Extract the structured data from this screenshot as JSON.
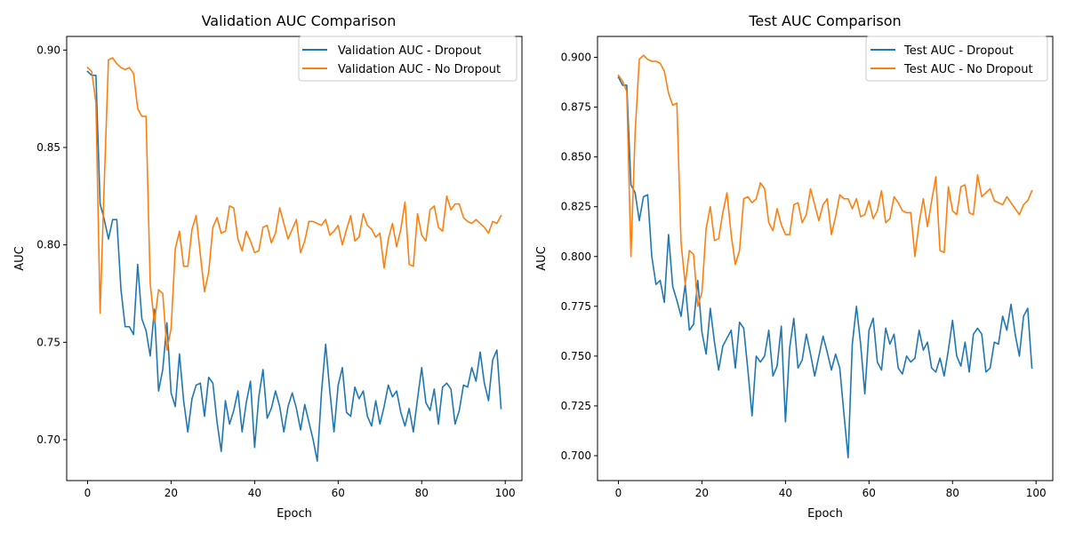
{
  "chart_data": [
    {
      "type": "line",
      "title": "Validation AUC Comparison",
      "xlabel": "Epoch",
      "ylabel": "AUC",
      "xlim": [
        -5,
        104
      ],
      "ylim": [
        0.679,
        0.907
      ],
      "xticks": [
        0,
        20,
        40,
        60,
        80,
        100
      ],
      "xtick_labels": [
        "0",
        "20",
        "40",
        "60",
        "80",
        "100"
      ],
      "yticks": [
        0.7,
        0.75,
        0.8,
        0.85,
        0.9
      ],
      "ytick_labels": [
        "0.70",
        "0.75",
        "0.80",
        "0.85",
        "0.90"
      ],
      "grid": false,
      "legend": "top-right",
      "series": [
        {
          "name": "Validation AUC - Dropout",
          "color": "#1f77b4",
          "x": [
            0,
            1,
            2,
            3,
            4,
            5,
            6,
            7,
            8,
            9,
            10,
            11,
            12,
            13,
            14,
            15,
            16,
            17,
            18,
            19,
            20,
            21,
            22,
            23,
            24,
            25,
            26,
            27,
            28,
            29,
            30,
            31,
            32,
            33,
            34,
            35,
            36,
            37,
            38,
            39,
            40,
            41,
            42,
            43,
            44,
            45,
            46,
            47,
            48,
            49,
            50,
            51,
            52,
            53,
            54,
            55,
            56,
            57,
            58,
            59,
            60,
            61,
            62,
            63,
            64,
            65,
            66,
            67,
            68,
            69,
            70,
            71,
            72,
            73,
            74,
            75,
            76,
            77,
            78,
            79,
            80,
            81,
            82,
            83,
            84,
            85,
            86,
            87,
            88,
            89,
            90,
            91,
            92,
            93,
            94,
            95,
            96,
            97,
            98,
            99
          ],
          "values": [
            0.889,
            0.887,
            0.887,
            0.821,
            0.813,
            0.803,
            0.813,
            0.813,
            0.777,
            0.758,
            0.758,
            0.754,
            0.79,
            0.762,
            0.756,
            0.743,
            0.767,
            0.725,
            0.736,
            0.76,
            0.724,
            0.717,
            0.744,
            0.72,
            0.704,
            0.721,
            0.728,
            0.729,
            0.712,
            0.732,
            0.729,
            0.709,
            0.694,
            0.72,
            0.708,
            0.715,
            0.725,
            0.704,
            0.719,
            0.73,
            0.696,
            0.722,
            0.736,
            0.711,
            0.716,
            0.725,
            0.717,
            0.704,
            0.717,
            0.724,
            0.716,
            0.705,
            0.718,
            0.709,
            0.7,
            0.689,
            0.724,
            0.749,
            0.725,
            0.704,
            0.728,
            0.737,
            0.714,
            0.712,
            0.727,
            0.721,
            0.725,
            0.712,
            0.707,
            0.72,
            0.708,
            0.717,
            0.728,
            0.722,
            0.725,
            0.714,
            0.707,
            0.716,
            0.704,
            0.721,
            0.737,
            0.719,
            0.715,
            0.726,
            0.708,
            0.727,
            0.729,
            0.726,
            0.708,
            0.715,
            0.728,
            0.727,
            0.737,
            0.73,
            0.745,
            0.729,
            0.72,
            0.741,
            0.746,
            0.716
          ]
        },
        {
          "name": "Validation AUC - No Dropout",
          "color": "#ff7f0e",
          "x": [
            0,
            1,
            2,
            3,
            4,
            5,
            6,
            7,
            8,
            9,
            10,
            11,
            12,
            13,
            14,
            15,
            16,
            17,
            18,
            19,
            20,
            21,
            22,
            23,
            24,
            25,
            26,
            27,
            28,
            29,
            30,
            31,
            32,
            33,
            34,
            35,
            36,
            37,
            38,
            39,
            40,
            41,
            42,
            43,
            44,
            45,
            46,
            47,
            48,
            49,
            50,
            51,
            52,
            53,
            54,
            55,
            56,
            57,
            58,
            59,
            60,
            61,
            62,
            63,
            64,
            65,
            66,
            67,
            68,
            69,
            70,
            71,
            72,
            73,
            74,
            75,
            76,
            77,
            78,
            79,
            80,
            81,
            82,
            83,
            84,
            85,
            86,
            87,
            88,
            89,
            90,
            91,
            92,
            93,
            94,
            95,
            96,
            97,
            98,
            99
          ],
          "values": [
            0.891,
            0.889,
            0.873,
            0.765,
            0.832,
            0.895,
            0.896,
            0.893,
            0.891,
            0.89,
            0.891,
            0.888,
            0.87,
            0.866,
            0.866,
            0.78,
            0.76,
            0.777,
            0.775,
            0.746,
            0.757,
            0.798,
            0.807,
            0.789,
            0.789,
            0.808,
            0.815,
            0.795,
            0.776,
            0.786,
            0.809,
            0.814,
            0.806,
            0.807,
            0.82,
            0.819,
            0.803,
            0.797,
            0.807,
            0.802,
            0.796,
            0.797,
            0.809,
            0.81,
            0.801,
            0.806,
            0.819,
            0.811,
            0.803,
            0.808,
            0.813,
            0.796,
            0.802,
            0.812,
            0.812,
            0.811,
            0.81,
            0.813,
            0.805,
            0.807,
            0.81,
            0.8,
            0.808,
            0.815,
            0.802,
            0.804,
            0.816,
            0.81,
            0.808,
            0.804,
            0.806,
            0.788,
            0.803,
            0.811,
            0.799,
            0.808,
            0.822,
            0.79,
            0.789,
            0.816,
            0.805,
            0.802,
            0.818,
            0.82,
            0.809,
            0.807,
            0.825,
            0.818,
            0.821,
            0.821,
            0.814,
            0.812,
            0.811,
            0.813,
            0.811,
            0.809,
            0.806,
            0.812,
            0.811,
            0.815
          ]
        }
      ]
    },
    {
      "type": "line",
      "title": "Test AUC Comparison",
      "xlabel": "Epoch",
      "ylabel": "AUC",
      "xlim": [
        -5,
        104
      ],
      "ylim": [
        0.6875,
        0.9105
      ],
      "xticks": [
        0,
        20,
        40,
        60,
        80,
        100
      ],
      "xtick_labels": [
        "0",
        "20",
        "40",
        "60",
        "80",
        "100"
      ],
      "yticks": [
        0.7,
        0.725,
        0.75,
        0.775,
        0.8,
        0.825,
        0.85,
        0.875,
        0.9
      ],
      "ytick_labels": [
        "0.700",
        "0.725",
        "0.750",
        "0.775",
        "0.800",
        "0.825",
        "0.850",
        "0.875",
        "0.900"
      ],
      "grid": false,
      "legend": "top-right",
      "series": [
        {
          "name": "Test AUC - Dropout",
          "color": "#1f77b4",
          "x": [
            0,
            1,
            2,
            3,
            4,
            5,
            6,
            7,
            8,
            9,
            10,
            11,
            12,
            13,
            14,
            15,
            16,
            17,
            18,
            19,
            20,
            21,
            22,
            23,
            24,
            25,
            26,
            27,
            28,
            29,
            30,
            31,
            32,
            33,
            34,
            35,
            36,
            37,
            38,
            39,
            40,
            41,
            42,
            43,
            44,
            45,
            46,
            47,
            48,
            49,
            50,
            51,
            52,
            53,
            54,
            55,
            56,
            57,
            58,
            59,
            60,
            61,
            62,
            63,
            64,
            65,
            66,
            67,
            68,
            69,
            70,
            71,
            72,
            73,
            74,
            75,
            76,
            77,
            78,
            79,
            80,
            81,
            82,
            83,
            84,
            85,
            86,
            87,
            88,
            89,
            90,
            91,
            92,
            93,
            94,
            95,
            96,
            97,
            98,
            99
          ],
          "values": [
            0.89,
            0.886,
            0.886,
            0.836,
            0.832,
            0.818,
            0.83,
            0.831,
            0.8,
            0.786,
            0.788,
            0.777,
            0.811,
            0.785,
            0.778,
            0.77,
            0.786,
            0.763,
            0.766,
            0.788,
            0.762,
            0.751,
            0.774,
            0.757,
            0.743,
            0.755,
            0.759,
            0.763,
            0.744,
            0.767,
            0.764,
            0.743,
            0.72,
            0.75,
            0.747,
            0.75,
            0.763,
            0.74,
            0.745,
            0.765,
            0.717,
            0.754,
            0.769,
            0.744,
            0.748,
            0.761,
            0.751,
            0.74,
            0.75,
            0.76,
            0.752,
            0.743,
            0.751,
            0.744,
            0.721,
            0.699,
            0.756,
            0.775,
            0.756,
            0.731,
            0.763,
            0.769,
            0.747,
            0.743,
            0.764,
            0.756,
            0.761,
            0.744,
            0.741,
            0.75,
            0.747,
            0.749,
            0.763,
            0.753,
            0.757,
            0.744,
            0.742,
            0.749,
            0.74,
            0.753,
            0.768,
            0.75,
            0.745,
            0.757,
            0.742,
            0.761,
            0.764,
            0.761,
            0.742,
            0.744,
            0.757,
            0.756,
            0.77,
            0.763,
            0.776,
            0.761,
            0.75,
            0.77,
            0.774,
            0.744
          ]
        },
        {
          "name": "Test AUC - No Dropout",
          "color": "#ff7f0e",
          "x": [
            0,
            1,
            2,
            3,
            4,
            5,
            6,
            7,
            8,
            9,
            10,
            11,
            12,
            13,
            14,
            15,
            16,
            17,
            18,
            19,
            20,
            21,
            22,
            23,
            24,
            25,
            26,
            27,
            28,
            29,
            30,
            31,
            32,
            33,
            34,
            35,
            36,
            37,
            38,
            39,
            40,
            41,
            42,
            43,
            44,
            45,
            46,
            47,
            48,
            49,
            50,
            51,
            52,
            53,
            54,
            55,
            56,
            57,
            58,
            59,
            60,
            61,
            62,
            63,
            64,
            65,
            66,
            67,
            68,
            69,
            70,
            71,
            72,
            73,
            74,
            75,
            76,
            77,
            78,
            79,
            80,
            81,
            82,
            83,
            84,
            85,
            86,
            87,
            88,
            89,
            90,
            91,
            92,
            93,
            94,
            95,
            96,
            97,
            98,
            99
          ],
          "values": [
            0.891,
            0.888,
            0.883,
            0.8,
            0.862,
            0.899,
            0.901,
            0.899,
            0.898,
            0.898,
            0.897,
            0.893,
            0.882,
            0.876,
            0.877,
            0.807,
            0.786,
            0.803,
            0.801,
            0.775,
            0.782,
            0.814,
            0.825,
            0.808,
            0.809,
            0.822,
            0.832,
            0.811,
            0.796,
            0.803,
            0.829,
            0.83,
            0.827,
            0.829,
            0.837,
            0.834,
            0.817,
            0.813,
            0.824,
            0.816,
            0.811,
            0.811,
            0.826,
            0.827,
            0.817,
            0.821,
            0.834,
            0.826,
            0.818,
            0.826,
            0.829,
            0.811,
            0.82,
            0.831,
            0.829,
            0.829,
            0.824,
            0.829,
            0.82,
            0.821,
            0.828,
            0.819,
            0.823,
            0.833,
            0.817,
            0.819,
            0.83,
            0.827,
            0.823,
            0.822,
            0.822,
            0.8,
            0.817,
            0.829,
            0.815,
            0.828,
            0.84,
            0.803,
            0.802,
            0.835,
            0.823,
            0.821,
            0.835,
            0.836,
            0.822,
            0.821,
            0.841,
            0.83,
            0.832,
            0.834,
            0.828,
            0.827,
            0.826,
            0.83,
            0.827,
            0.824,
            0.821,
            0.826,
            0.828,
            0.833
          ]
        }
      ]
    }
  ]
}
